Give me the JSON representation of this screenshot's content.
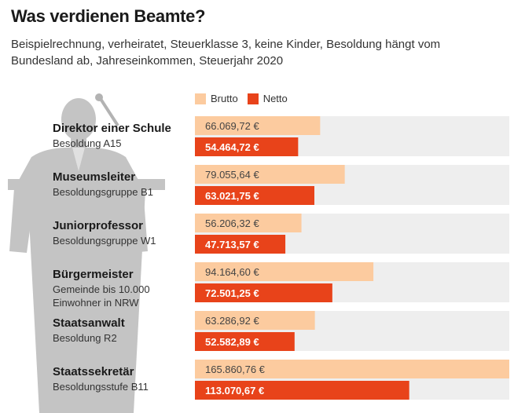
{
  "header": {
    "title": "Was verdienen Beamte?",
    "subtitle": "Beispielrechnung, verheiratet, Steuerklasse 3, keine Kinder, Besoldung hängt vom Bundesland ab, Jahreseinkommen, Steuerjahr 2020"
  },
  "colors": {
    "brutto": "#fccb9f",
    "netto": "#e8431a",
    "track": "#eeeeee",
    "figure": "#c4c4c4"
  },
  "chart_data": {
    "type": "bar",
    "orientation": "horizontal",
    "xlim": [
      0,
      165860.76
    ],
    "legend": [
      "Brutto",
      "Netto"
    ],
    "categories": [
      {
        "name": "Direktor einer Schule",
        "sub": [
          "Besoldung A15"
        ],
        "brutto": 66069.72,
        "netto": 54464.72,
        "brutto_label": "66.069,72 €",
        "netto_label": "54.464,72 €"
      },
      {
        "name": "Museumsleiter",
        "sub": [
          "Besoldungsgruppe B1"
        ],
        "brutto": 79055.64,
        "netto": 63021.75,
        "brutto_label": "79.055,64 €",
        "netto_label": "63.021,75 €"
      },
      {
        "name": "Juniorprofessor",
        "sub": [
          "Besoldungsgruppe W1"
        ],
        "brutto": 56206.32,
        "netto": 47713.57,
        "brutto_label": "56.206,32 €",
        "netto_label": "47.713,57 €"
      },
      {
        "name": "Bürgermeister",
        "sub": [
          "Gemeinde bis 10.000",
          "Einwohner in NRW"
        ],
        "brutto": 94164.6,
        "netto": 72501.25,
        "brutto_label": "94.164,60 €",
        "netto_label": "72.501,25 €"
      },
      {
        "name": "Staatsanwalt",
        "sub": [
          "Besoldung R2"
        ],
        "brutto": 63286.92,
        "netto": 52582.89,
        "brutto_label": "63.286,92 €",
        "netto_label": "52.582,89 €"
      },
      {
        "name": "Staatssekretär",
        "sub": [
          "Besoldungsstufe B11"
        ],
        "brutto": 165860.76,
        "netto": 113070.67,
        "brutto_label": "165.860,76 €",
        "netto_label": "113.070,67 €"
      }
    ]
  }
}
